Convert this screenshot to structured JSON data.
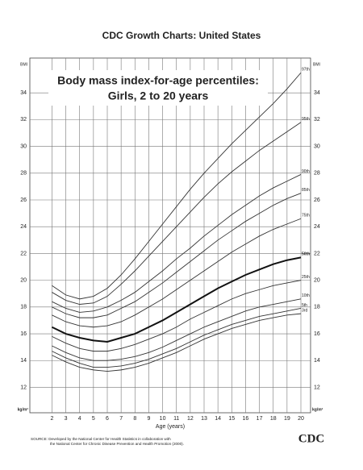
{
  "chart_data": {
    "type": "line",
    "title": "CDC Growth Charts: United States",
    "subtitle": [
      "Body mass index-for-age percentiles:",
      "Girls, 2 to 20 years"
    ],
    "x_label": "Age (years)",
    "y_label_top": "BMI",
    "y_label_bottom": "kg/m²",
    "source": [
      "SOURCE: Developed by the National Center for Health Statistics in collaboration with",
      "the National Center for Chronic Disease Prevention and Health Promotion (2000)."
    ],
    "logo": "CDC",
    "x": [
      2,
      3,
      4,
      5,
      6,
      7,
      8,
      9,
      10,
      11,
      12,
      13,
      14,
      15,
      16,
      17,
      18,
      19,
      20
    ],
    "xlim": [
      0.4,
      20.7
    ],
    "xticks": [
      2,
      3,
      4,
      5,
      6,
      7,
      8,
      9,
      10,
      11,
      12,
      13,
      14,
      15,
      16,
      17,
      18,
      19,
      20
    ],
    "ylim": [
      10.1,
      36.6
    ],
    "yticks": [
      12,
      14,
      16,
      18,
      20,
      22,
      24,
      26,
      28,
      30,
      32,
      34
    ],
    "grid": true,
    "series": [
      {
        "name": "97th",
        "color": "#333333",
        "values": [
          19.6,
          18.9,
          18.6,
          18.8,
          19.4,
          20.4,
          21.6,
          22.9,
          24.2,
          25.5,
          26.8,
          28.0,
          29.1,
          30.2,
          31.2,
          32.2,
          33.2,
          34.3,
          35.5
        ]
      },
      {
        "name": "95th",
        "color": "#333333",
        "values": [
          19.1,
          18.5,
          18.2,
          18.3,
          18.8,
          19.7,
          20.7,
          21.8,
          22.9,
          24.0,
          25.1,
          26.2,
          27.2,
          28.1,
          28.9,
          29.7,
          30.4,
          31.1,
          31.8
        ]
      },
      {
        "name": "90th",
        "color": "#333333",
        "values": [
          18.4,
          17.9,
          17.6,
          17.7,
          18.0,
          18.5,
          19.1,
          19.9,
          20.7,
          21.6,
          22.4,
          23.3,
          24.1,
          24.9,
          25.6,
          26.3,
          26.9,
          27.4,
          27.9
        ]
      },
      {
        "name": "85th",
        "color": "#333333",
        "values": [
          18.0,
          17.5,
          17.2,
          17.2,
          17.4,
          17.9,
          18.4,
          19.1,
          19.8,
          20.6,
          21.4,
          22.2,
          23.0,
          23.7,
          24.4,
          25.0,
          25.6,
          26.1,
          26.5
        ]
      },
      {
        "name": "75th",
        "color": "#333333",
        "values": [
          17.4,
          16.9,
          16.6,
          16.5,
          16.6,
          16.9,
          17.4,
          18.0,
          18.6,
          19.3,
          20.0,
          20.7,
          21.4,
          22.1,
          22.7,
          23.3,
          23.8,
          24.2,
          24.6
        ]
      },
      {
        "name": "50th",
        "color": "#111111",
        "bold": true,
        "values": [
          16.5,
          16.0,
          15.7,
          15.5,
          15.4,
          15.7,
          16.0,
          16.5,
          17.0,
          17.6,
          18.2,
          18.8,
          19.4,
          19.9,
          20.4,
          20.8,
          21.2,
          21.5,
          21.7
        ]
      },
      {
        "name": "25th",
        "color": "#333333",
        "values": [
          15.8,
          15.3,
          14.9,
          14.7,
          14.7,
          14.9,
          15.2,
          15.6,
          16.0,
          16.5,
          17.1,
          17.6,
          18.1,
          18.6,
          19.0,
          19.3,
          19.6,
          19.8,
          20.0
        ]
      },
      {
        "name": "10th",
        "color": "#333333",
        "values": [
          15.1,
          14.6,
          14.2,
          14.0,
          14.0,
          14.1,
          14.3,
          14.6,
          15.0,
          15.5,
          16.0,
          16.5,
          16.9,
          17.3,
          17.7,
          18.0,
          18.2,
          18.4,
          18.6
        ]
      },
      {
        "name": "5th",
        "color": "#333333",
        "values": [
          14.7,
          14.2,
          13.8,
          13.5,
          13.5,
          13.6,
          13.8,
          14.1,
          14.5,
          14.9,
          15.4,
          15.9,
          16.3,
          16.7,
          17.0,
          17.3,
          17.5,
          17.7,
          17.9
        ]
      },
      {
        "name": "3rd",
        "color": "#333333",
        "values": [
          14.4,
          13.9,
          13.5,
          13.3,
          13.2,
          13.3,
          13.5,
          13.8,
          14.2,
          14.6,
          15.1,
          15.6,
          16.0,
          16.4,
          16.7,
          17.0,
          17.2,
          17.4,
          17.5
        ]
      }
    ]
  }
}
